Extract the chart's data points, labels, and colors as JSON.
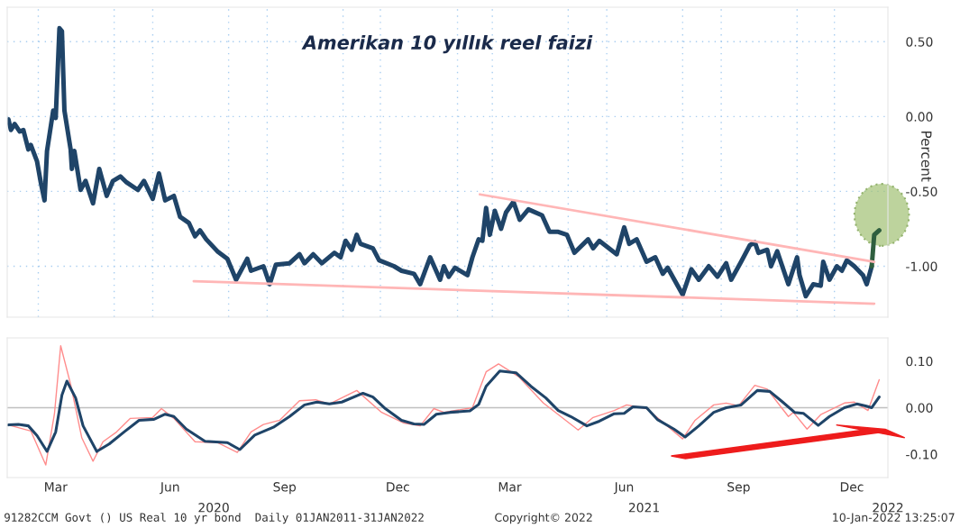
{
  "chart_data": [
    {
      "type": "line",
      "title": "Amerikan 10 yıllık reel faizi",
      "ylabel": "Percent",
      "xlim": [
        "2020-02-05",
        "2022-01-13"
      ],
      "ylim": [
        -1.34,
        0.73
      ],
      "yticks": [
        {
          "value": 0.5,
          "label": "0.50"
        },
        {
          "value": 0,
          "label": "0.00"
        },
        {
          "value": -0.5,
          "label": "-0.50"
        },
        {
          "value": -1,
          "label": "-1.00"
        }
      ],
      "xticks": [
        {
          "value": "2020-03-01",
          "label": null
        },
        {
          "value": "2020-05-01",
          "label": null
        },
        {
          "value": "2020-06-01",
          "label": null
        },
        {
          "value": "2020-08-01",
          "label": null
        },
        {
          "value": "2020-09-01",
          "label": null
        },
        {
          "value": "2020-11-01",
          "label": null
        },
        {
          "value": "2020-12-01",
          "label": null
        },
        {
          "value": "2021-02-01",
          "label": null
        },
        {
          "value": "2021-03-01",
          "label": null
        },
        {
          "value": "2021-05-01",
          "label": null
        },
        {
          "value": "2021-06-01",
          "label": null
        },
        {
          "value": "2021-08-01",
          "label": null
        },
        {
          "value": "2021-09-01",
          "label": null
        },
        {
          "value": "2021-11-01",
          "label": null
        },
        {
          "value": "2021-12-01",
          "label": null
        }
      ],
      "grid": true,
      "tick_labels": "y",
      "series": [
        {
          "color": "#1f4468",
          "x": [
            "2020-02-06",
            "2020-02-08",
            "2020-02-11",
            "2020-02-15",
            "2020-02-18",
            "2020-02-22",
            "2020-02-24",
            "2020-02-29",
            "2020-03-03",
            "2020-03-06",
            "2020-03-08",
            "2020-03-13",
            "2020-03-15",
            "2020-03-18",
            "2020-03-20",
            "2020-03-22",
            "2020-03-27",
            "2020-03-28",
            "2020-03-30",
            "2020-04-04",
            "2020-04-08",
            "2020-04-14",
            "2020-04-19",
            "2020-04-25",
            "2020-04-30",
            "2020-05-06",
            "2020-05-11",
            "2020-05-20",
            "2020-05-25",
            "2020-06-01",
            "2020-06-06",
            "2020-06-11",
            "2020-06-18",
            "2020-06-23",
            "2020-06-30",
            "2020-07-05",
            "2020-07-09",
            "2020-07-14",
            "2020-07-23",
            "2020-07-31",
            "2020-08-07",
            "2020-08-16",
            "2020-08-19",
            "2020-08-29",
            "2020-09-03",
            "2020-09-08",
            "2020-09-19",
            "2020-09-27",
            "2020-10-01",
            "2020-10-08",
            "2020-10-15",
            "2020-10-25",
            "2020-10-30",
            "2020-11-03",
            "2020-11-08",
            "2020-11-12",
            "2020-11-15",
            "2020-11-25",
            "2020-11-30",
            "2020-12-12",
            "2020-12-18",
            "2020-12-28",
            "2021-01-02",
            "2021-01-10",
            "2021-01-18",
            "2021-01-21",
            "2021-01-25",
            "2021-01-30",
            "2021-02-09",
            "2021-02-13",
            "2021-02-18",
            "2021-02-21",
            "2021-02-24",
            "2021-02-27",
            "2021-03-03",
            "2021-03-08",
            "2021-03-12",
            "2021-03-18",
            "2021-03-23",
            "2021-03-30",
            "2021-04-10",
            "2021-04-16",
            "2021-04-23",
            "2021-04-30",
            "2021-05-06",
            "2021-05-17",
            "2021-05-21",
            "2021-05-26",
            "2021-06-09",
            "2021-06-15",
            "2021-06-19",
            "2021-06-25",
            "2021-07-03",
            "2021-07-10",
            "2021-07-16",
            "2021-07-20",
            "2021-08-01",
            "2021-08-08",
            "2021-08-14",
            "2021-08-22",
            "2021-08-29",
            "2021-09-05",
            "2021-09-09",
            "2021-09-17",
            "2021-09-24",
            "2021-09-28",
            "2021-10-01",
            "2021-10-08",
            "2021-10-11",
            "2021-10-16",
            "2021-10-25",
            "2021-11-01",
            "2021-11-03",
            "2021-11-08",
            "2021-11-14",
            "2021-11-20",
            "2021-11-22",
            "2021-11-27",
            "2021-12-03",
            "2021-12-07",
            "2021-12-11",
            "2021-12-17",
            "2021-12-24",
            "2021-12-27",
            "2021-12-31"
          ],
          "values": [
            -0.02,
            -0.09,
            -0.05,
            -0.1,
            -0.09,
            -0.22,
            -0.19,
            -0.3,
            -0.44,
            -0.56,
            -0.23,
            0.04,
            -0.01,
            0.59,
            0.57,
            0.04,
            -0.22,
            -0.35,
            -0.23,
            -0.49,
            -0.43,
            -0.58,
            -0.35,
            -0.53,
            -0.43,
            -0.4,
            -0.44,
            -0.49,
            -0.43,
            -0.55,
            -0.38,
            -0.56,
            -0.53,
            -0.67,
            -0.71,
            -0.8,
            -0.76,
            -0.82,
            -0.9,
            -0.95,
            -1.09,
            -0.95,
            -1.03,
            -1.0,
            -1.12,
            -0.99,
            -0.98,
            -0.92,
            -0.98,
            -0.92,
            -0.98,
            -0.91,
            -0.94,
            -0.83,
            -0.89,
            -0.79,
            -0.85,
            -0.88,
            -0.96,
            -1.0,
            -1.03,
            -1.05,
            -1.12,
            -0.94,
            -1.09,
            -1.0,
            -1.07,
            -1.01,
            -1.06,
            -0.94,
            -0.82,
            -0.83,
            -0.61,
            -0.79,
            -0.63,
            -0.75,
            -0.64,
            -0.57,
            -0.69,
            -0.62,
            -0.66,
            -0.77,
            -0.77,
            -0.79,
            -0.91,
            -0.82,
            -0.88,
            -0.83,
            -0.92,
            -0.74,
            -0.85,
            -0.82,
            -0.97,
            -0.94,
            -1.05,
            -1.01,
            -1.19,
            -1.02,
            -1.09,
            -1.0,
            -1.07,
            -0.98,
            -1.09,
            -0.97,
            -0.86,
            -0.84,
            -0.91,
            -0.89,
            -1.0,
            -0.9,
            -1.12,
            -0.94,
            -1.06,
            -1.2,
            -1.12,
            -1.13,
            -0.97,
            -1.09,
            -1.0,
            -1.03,
            -0.96,
            -1.0,
            -1.06,
            -1.12,
            -1.0
          ]
        },
        {
          "color": "#2f5f3f",
          "x": [
            "2021-12-31",
            "2022-01-02",
            "2022-01-06"
          ],
          "values": [
            -1.0,
            -0.79,
            -0.76
          ]
        },
        {
          "color": "#ffb6b6",
          "x": [
            "2021-02-19",
            "2022-01-02"
          ],
          "values": [
            -0.52,
            -0.97
          ]
        },
        {
          "color": "#ffb6b6",
          "x": [
            "2020-07-04",
            "2022-01-02"
          ],
          "values": [
            -1.1,
            -1.25
          ]
        }
      ]
    },
    {
      "type": "line",
      "xlim": [
        "2020-02-05",
        "2022-01-13"
      ],
      "ylim": [
        -0.15,
        0.15
      ],
      "yticks": [
        {
          "value": 0.1,
          "label": "0.10"
        },
        {
          "value": 0,
          "label": "0.00"
        },
        {
          "value": -0.1,
          "label": "-0.10"
        }
      ],
      "xticks": [
        {
          "value": "2020-03-15",
          "label": "Mar"
        },
        {
          "value": "2020-06-15",
          "label": "Jun"
        },
        {
          "value": "2020-09-15",
          "label": "Sep"
        },
        {
          "value": "2020-12-15",
          "label": "Dec"
        },
        {
          "value": "2021-03-15",
          "label": "Mar"
        },
        {
          "value": "2021-06-15",
          "label": "Jun"
        },
        {
          "value": "2021-09-15",
          "label": "Sep"
        },
        {
          "value": "2021-12-15",
          "label": "Dec"
        }
      ],
      "x2lim": [
        "2020-02-05",
        "2022-01-13"
      ],
      "x2ticks": [
        {
          "value": "2020-07-20",
          "label": "2020"
        },
        {
          "value": "2021-07-01",
          "label": "2021"
        },
        {
          "value": "2022-01-13",
          "label": "2022"
        }
      ],
      "ref_lines": [
        {
          "axis": "y",
          "value": 0,
          "color": "#c0c0c0"
        }
      ],
      "annotations": [
        "91282CCM Govt () US Real 10 yr bond  Daily 01JAN2011-31JAN2022",
        "Copyright© 2022",
        "10-Jan-2022 13:25:07"
      ],
      "series": [
        {
          "color": "#ff8c8c",
          "x": [
            "2020-02-06",
            "2020-02-24",
            "2020-03-07",
            "2020-03-14",
            "2020-03-19",
            "2020-03-27",
            "2020-04-05",
            "2020-04-14",
            "2020-04-22",
            "2020-05-03",
            "2020-05-14",
            "2020-06-01",
            "2020-06-08",
            "2020-06-18",
            "2020-07-05",
            "2020-07-23",
            "2020-08-08",
            "2020-08-19",
            "2020-08-29",
            "2020-09-11",
            "2020-09-27",
            "2020-10-10",
            "2020-10-21",
            "2020-11-12",
            "2020-12-02",
            "2020-12-20",
            "2021-01-02",
            "2021-01-13",
            "2021-01-21",
            "2021-02-13",
            "2021-02-24",
            "2021-03-06",
            "2021-03-22",
            "2021-04-11",
            "2021-05-09",
            "2021-05-21",
            "2021-06-07",
            "2021-06-17",
            "2021-07-03",
            "2021-08-01",
            "2021-08-11",
            "2021-08-26",
            "2021-09-05",
            "2021-09-15",
            "2021-09-28",
            "2021-10-08",
            "2021-10-16",
            "2021-10-25",
            "2021-10-29",
            "2021-11-09",
            "2021-11-20",
            "2021-12-09",
            "2021-12-17",
            "2021-12-28",
            "2022-01-06"
          ],
          "values": [
            -0.037,
            -0.05,
            -0.123,
            -0.013,
            0.133,
            0.05,
            -0.065,
            -0.115,
            -0.073,
            -0.052,
            -0.023,
            -0.021,
            -0.002,
            -0.023,
            -0.073,
            -0.075,
            -0.096,
            -0.052,
            -0.036,
            -0.027,
            0.015,
            0.017,
            0.008,
            0.037,
            -0.01,
            -0.033,
            -0.039,
            -0.002,
            -0.01,
            0.0,
            0.077,
            0.094,
            0.067,
            0.01,
            -0.048,
            -0.021,
            -0.006,
            0.006,
            -0.002,
            -0.067,
            -0.027,
            0.006,
            0.01,
            0.004,
            0.048,
            0.04,
            0.012,
            -0.019,
            -0.01,
            -0.046,
            -0.015,
            0.01,
            0.012,
            -0.006,
            0.06
          ]
        },
        {
          "color": "#1f4468",
          "x": [
            "2020-02-06",
            "2020-02-14",
            "2020-02-22",
            "2020-02-29",
            "2020-03-08",
            "2020-03-15",
            "2020-03-20",
            "2020-03-24",
            "2020-03-31",
            "2020-04-06",
            "2020-04-17",
            "2020-04-27",
            "2020-05-09",
            "2020-05-21",
            "2020-06-02",
            "2020-06-11",
            "2020-06-18",
            "2020-06-28",
            "2020-07-13",
            "2020-07-31",
            "2020-08-10",
            "2020-08-22",
            "2020-09-06",
            "2020-09-19",
            "2020-10-01",
            "2020-10-11",
            "2020-10-21",
            "2020-10-31",
            "2020-11-17",
            "2020-11-25",
            "2020-12-05",
            "2020-12-18",
            "2020-12-28",
            "2021-01-05",
            "2021-01-15",
            "2021-01-26",
            "2021-02-11",
            "2021-02-18",
            "2021-02-24",
            "2021-03-07",
            "2021-03-20",
            "2021-04-01",
            "2021-04-13",
            "2021-04-23",
            "2021-05-03",
            "2021-05-16",
            "2021-05-26",
            "2021-06-07",
            "2021-06-15",
            "2021-06-22",
            "2021-07-03",
            "2021-07-12",
            "2021-07-25",
            "2021-08-03",
            "2021-08-14",
            "2021-08-26",
            "2021-09-05",
            "2021-09-17",
            "2021-09-30",
            "2021-10-10",
            "2021-10-20",
            "2021-10-30",
            "2021-11-06",
            "2021-11-18",
            "2021-11-27",
            "2021-12-09",
            "2021-12-19",
            "2021-12-26",
            "2021-12-31",
            "2022-01-06"
          ],
          "values": [
            -0.037,
            -0.036,
            -0.039,
            -0.06,
            -0.094,
            -0.052,
            0.027,
            0.057,
            0.021,
            -0.039,
            -0.094,
            -0.078,
            -0.052,
            -0.027,
            -0.025,
            -0.014,
            -0.019,
            -0.046,
            -0.072,
            -0.075,
            -0.09,
            -0.059,
            -0.042,
            -0.019,
            0.006,
            0.012,
            0.008,
            0.012,
            0.031,
            0.023,
            -0.002,
            -0.027,
            -0.035,
            -0.036,
            -0.014,
            -0.01,
            -0.007,
            0.007,
            0.046,
            0.079,
            0.075,
            0.046,
            0.021,
            -0.006,
            -0.019,
            -0.039,
            -0.029,
            -0.013,
            -0.012,
            0.002,
            0.0,
            -0.026,
            -0.046,
            -0.063,
            -0.039,
            -0.01,
            0.0,
            0.006,
            0.037,
            0.035,
            0.013,
            -0.01,
            -0.012,
            -0.038,
            -0.019,
            0.0,
            0.008,
            0.004,
            0.0,
            0.023
          ]
        }
      ]
    }
  ]
}
